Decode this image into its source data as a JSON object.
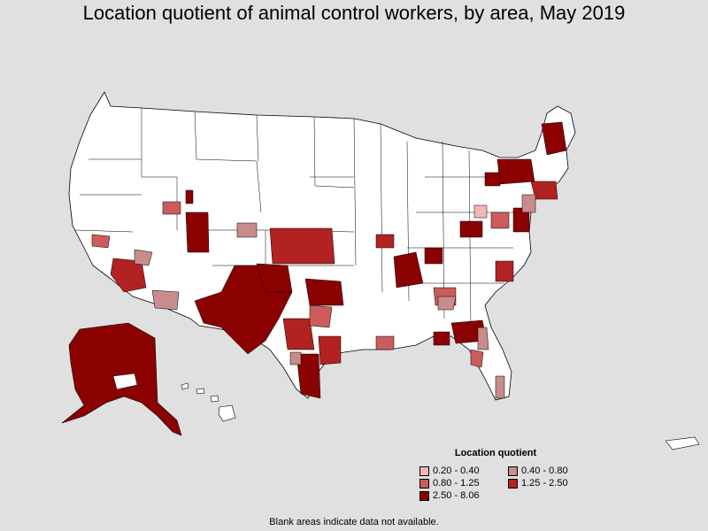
{
  "title": "Location quotient of animal control workers, by area, May 2019",
  "legend": {
    "title": "Location quotient",
    "items": [
      {
        "label": "0.20 - 0.40",
        "color": "#f4b6b6"
      },
      {
        "label": "0.40 - 0.80",
        "color": "#c88c8c"
      },
      {
        "label": "0.80 - 1.25",
        "color": "#cc5c5c"
      },
      {
        "label": "1.25 - 2.50",
        "color": "#b22222"
      },
      {
        "label": "2.50 - 8.06",
        "color": "#8b0000"
      }
    ]
  },
  "note": "Blank areas indicate data not available.",
  "map_colors": {
    "background": "#e0e0e0",
    "no_data": "#ffffff",
    "border": "#000000"
  }
}
